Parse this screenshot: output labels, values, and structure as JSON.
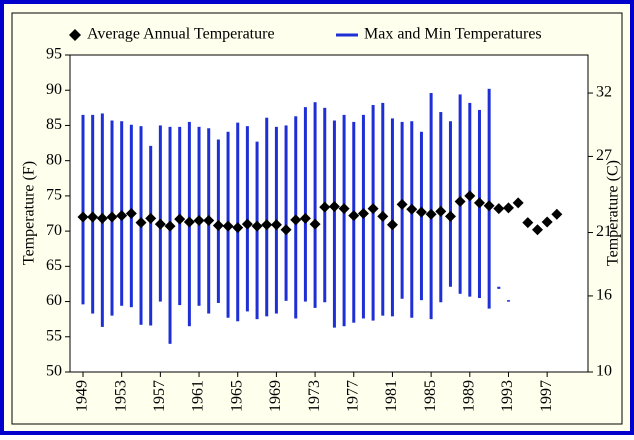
{
  "chart_data": {
    "type": "temperature-range",
    "axis_title_left": "Temperature (F)",
    "axis_title_right": "Temperature (C)",
    "categories": [
      "1949",
      null,
      null,
      null,
      "1953",
      null,
      null,
      null,
      "1957",
      null,
      null,
      null,
      "1961",
      null,
      null,
      null,
      "1965",
      null,
      null,
      null,
      "1969",
      null,
      null,
      null,
      "1973",
      null,
      null,
      null,
      "1977",
      null,
      null,
      null,
      "1981",
      null,
      null,
      null,
      "1985",
      null,
      null,
      null,
      "1989",
      null,
      null,
      null,
      "1993",
      null,
      null,
      null,
      "1997",
      null
    ],
    "series": [
      {
        "name": "Average Annual Temperature",
        "color": "#000000",
        "marker": "diamond",
        "values": [
          72.0,
          72.0,
          71.8,
          72.0,
          72.2,
          72.5,
          71.2,
          71.8,
          71.0,
          70.7,
          71.7,
          71.3,
          71.5,
          71.5,
          70.8,
          70.7,
          70.5,
          71.0,
          70.7,
          70.9,
          70.9,
          70.2,
          71.6,
          71.8,
          71.0,
          73.4,
          73.5,
          73.2,
          72.2,
          72.5,
          73.2,
          72.1,
          70.9,
          73.8,
          73.1,
          72.7,
          72.4,
          72.8,
          72.1,
          74.2,
          75.0,
          74.0,
          73.6,
          73.2,
          73.3,
          74.0,
          71.2,
          70.2,
          71.3,
          72.4
        ]
      },
      {
        "name": "Max and Min Temperatures",
        "color": "#1f2fd6",
        "marker": "range",
        "high": [
          86.5,
          86.5,
          86.7,
          85.7,
          85.6,
          85.1,
          84.9,
          82.1,
          85.0,
          84.8,
          84.8,
          85.5,
          84.8,
          84.6,
          83.0,
          84.1,
          85.4,
          84.9,
          82.7,
          86.1,
          84.8,
          85.0,
          86.3,
          87.6,
          88.3,
          87.5,
          85.7,
          86.5,
          85.5,
          86.5,
          87.9,
          88.2,
          86.0,
          85.5,
          85.6,
          84.1,
          89.6,
          86.9,
          85.6,
          89.4,
          88.2,
          87.2,
          90.2,
          62.1,
          60.2,
          null,
          null,
          null,
          null,
          null
        ],
        "low": [
          59.6,
          58.3,
          56.4,
          58.0,
          59.4,
          59.2,
          56.7,
          56.6,
          60.0,
          54.0,
          59.5,
          56.5,
          59.4,
          58.3,
          59.8,
          57.7,
          57.2,
          58.6,
          57.5,
          57.9,
          58.3,
          60.1,
          57.6,
          60.0,
          59.1,
          59.9,
          56.3,
          56.5,
          57.0,
          57.6,
          57.3,
          58.0,
          57.9,
          60.4,
          57.7,
          60.2,
          57.5,
          59.9,
          62.1,
          61.1,
          60.7,
          60.5,
          59.0,
          61.8,
          60.0,
          null,
          null,
          null,
          null,
          null
        ]
      }
    ],
    "ylim": [
      50,
      95
    ],
    "yticks": [
      50,
      55,
      60,
      65,
      70,
      75,
      80,
      85,
      90,
      95
    ],
    "y2lim": [
      10,
      35
    ],
    "y2ticks": [
      10,
      16,
      21,
      27,
      32
    ],
    "grid": false,
    "legend": "top"
  }
}
